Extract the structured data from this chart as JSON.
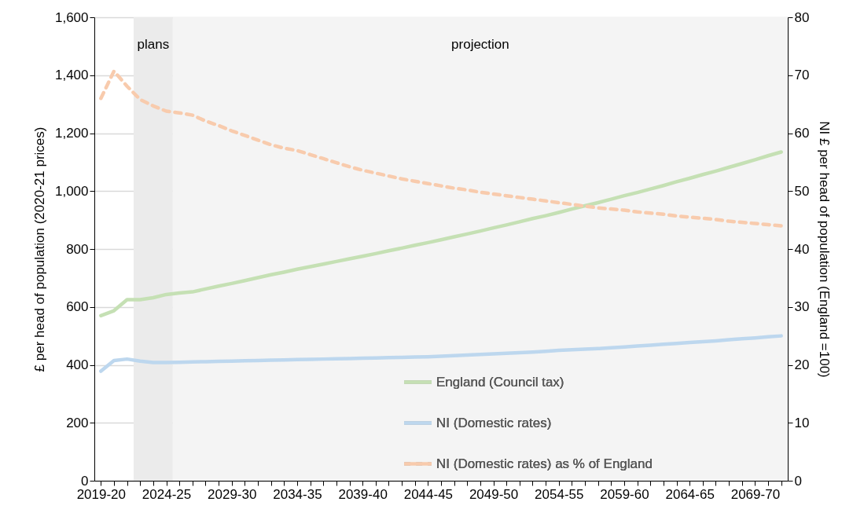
{
  "chart_data": {
    "type": "line",
    "ylabel": "£ per head of population (2020-21 prices)",
    "y2label": "NI £ per head of population (England =100)",
    "categories": [
      "2019-20",
      null,
      null,
      null,
      null,
      "2024-25",
      null,
      null,
      null,
      null,
      "2029-30",
      null,
      null,
      null,
      null,
      "2034-35",
      null,
      null,
      null,
      null,
      "2039-40",
      null,
      null,
      null,
      null,
      "2044-45",
      null,
      null,
      null,
      null,
      "2049-50",
      null,
      null,
      null,
      null,
      "2054-55",
      null,
      null,
      null,
      null,
      "2059-60",
      null,
      null,
      null,
      null,
      "2064-65",
      null,
      null,
      null,
      null,
      "2069-70",
      null,
      null
    ],
    "ylim": [
      0,
      1600
    ],
    "yticks": [
      {
        "value": 0,
        "label": "0"
      },
      {
        "value": 200,
        "label": "200"
      },
      {
        "value": 400,
        "label": "400"
      },
      {
        "value": 600,
        "label": "600"
      },
      {
        "value": 800,
        "label": "800"
      },
      {
        "value": 1000,
        "label": "1,000"
      },
      {
        "value": 1200,
        "label": "1,200"
      },
      {
        "value": 1400,
        "label": "1,400"
      },
      {
        "value": 1600,
        "label": "1,600"
      }
    ],
    "y2lim": [
      0,
      80
    ],
    "y2ticks": [
      0,
      10,
      20,
      30,
      40,
      50,
      60,
      70,
      80
    ],
    "grid": "y",
    "legend": "bottom right",
    "series": [
      {
        "name": "England (Council tax)",
        "color": "#c5e0b4",
        "values": [
          570,
          587,
          625,
          625,
          632,
          643,
          648,
          652,
          662,
          672,
          681,
          691,
          701,
          711,
          720,
          730,
          739,
          748,
          757,
          766,
          775,
          784,
          794,
          803,
          813,
          822,
          832,
          842,
          852,
          862,
          873,
          883,
          894,
          905,
          915,
          926,
          938,
          949,
          960,
          972,
          984,
          995,
          1007,
          1019,
          1032,
          1044,
          1057,
          1069,
          1082,
          1095,
          1108,
          1122,
          1135
        ]
      },
      {
        "name": "NI (Domestic rates)",
        "color": "#bdd7ee",
        "values": [
          378,
          415,
          420,
          413,
          408,
          408,
          409,
          410,
          411,
          412,
          413,
          414,
          415,
          416,
          417,
          418,
          419,
          420,
          421,
          422,
          423,
          424,
          425,
          426,
          427,
          428,
          430,
          432,
          434,
          436,
          438,
          440,
          442,
          444,
          447,
          450,
          452,
          454,
          456,
          459,
          462,
          465,
          468,
          471,
          474,
          477,
          480,
          483,
          487,
          490,
          493,
          497,
          500
        ]
      },
      {
        "name": "NI (Domestic rates) as % of England",
        "color": "#f8cbad",
        "axis": "y2",
        "line_style": "dashed",
        "values": [
          66.0,
          70.7,
          68.1,
          65.8,
          64.7,
          63.8,
          63.5,
          63.1,
          62.1,
          61.3,
          60.4,
          59.6,
          58.8,
          58.0,
          57.4,
          57.0,
          56.3,
          55.6,
          54.9,
          54.2,
          53.6,
          53.1,
          52.6,
          52.1,
          51.7,
          51.3,
          50.9,
          50.5,
          50.2,
          49.8,
          49.5,
          49.2,
          48.9,
          48.6,
          48.3,
          48.0,
          47.7,
          47.4,
          47.1,
          46.9,
          46.7,
          46.4,
          46.2,
          46.0,
          45.7,
          45.5,
          45.3,
          45.1,
          44.8,
          44.6,
          44.4,
          44.2,
          44.0
        ]
      }
    ],
    "annotations": [
      "plans",
      "projection"
    ]
  }
}
